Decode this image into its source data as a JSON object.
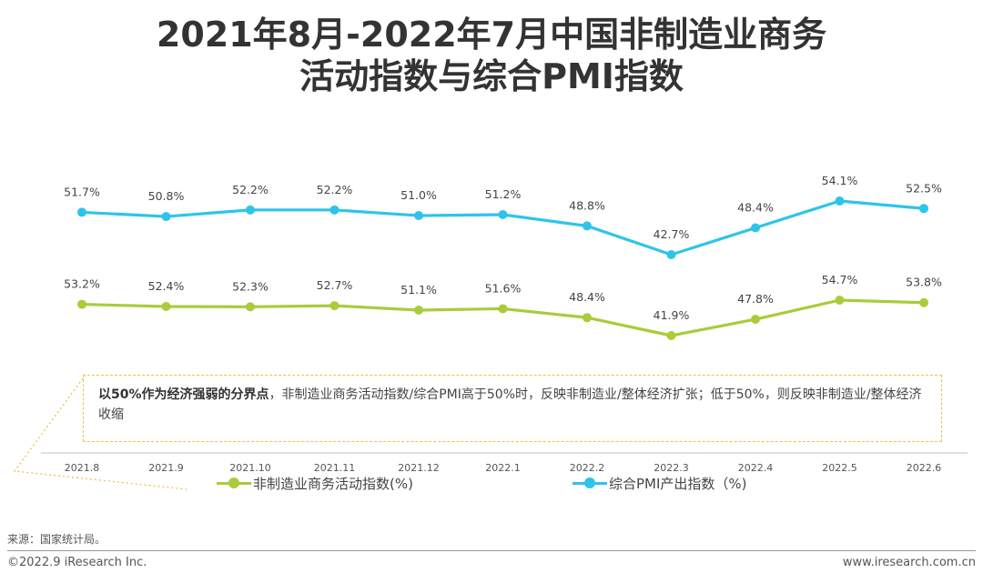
{
  "title_line1": "2021年8月-2022年7月中国非制造业商务",
  "title_line2": "活动指数与综合PMI指数",
  "note": {
    "bold": "以50%作为经济强弱的分界点",
    "text": "，非制造业商务活动指数/综合PMI高于50%时，反映非制造业/整体经济扩张；低于50%，则反映非制造业/整体经济收缩"
  },
  "colors": {
    "green": "#a9cc3a",
    "blue": "#2ec4ea",
    "note_border": "#e8c547"
  },
  "chart_data": {
    "type": "line",
    "categories": [
      "2021.8",
      "2021.9",
      "2021.10",
      "2021.11",
      "2021.12",
      "2022.1",
      "2022.2",
      "2022.3",
      "2022.4",
      "2022.5",
      "2022.6"
    ],
    "series": [
      {
        "name": "综合PMI产出指数（%)",
        "color": "#2ec4ea",
        "values": [
          51.7,
          50.8,
          52.2,
          52.2,
          51.0,
          51.2,
          48.8,
          42.7,
          48.4,
          54.1,
          52.5
        ],
        "labels": [
          "51.7%",
          "50.8%",
          "52.2%",
          "52.2%",
          "51.0%",
          "51.2%",
          "48.8%",
          "42.7%",
          "48.4%",
          "54.1%",
          "52.5%"
        ]
      },
      {
        "name": "非制造业商务活动指数(%)",
        "color": "#a9cc3a",
        "values": [
          53.2,
          52.4,
          52.3,
          52.7,
          51.1,
          51.6,
          48.4,
          41.9,
          47.8,
          54.7,
          53.8
        ],
        "labels": [
          "53.2%",
          "52.4%",
          "52.3%",
          "52.7%",
          "51.1%",
          "51.6%",
          "48.4%",
          "41.9%",
          "47.8%",
          "54.7%",
          "53.8%"
        ]
      }
    ],
    "legend": [
      "非制造业商务活动指数(%)",
      "综合PMI产出指数（%)"
    ]
  },
  "legend": {
    "green_label": "非制造业商务活动指数(%)",
    "blue_label": "综合PMI产出指数（%)"
  },
  "source": "来源：国家统计局。",
  "copyright": "©2022.9 iResearch Inc.",
  "website": "www.iresearch.com.cn"
}
